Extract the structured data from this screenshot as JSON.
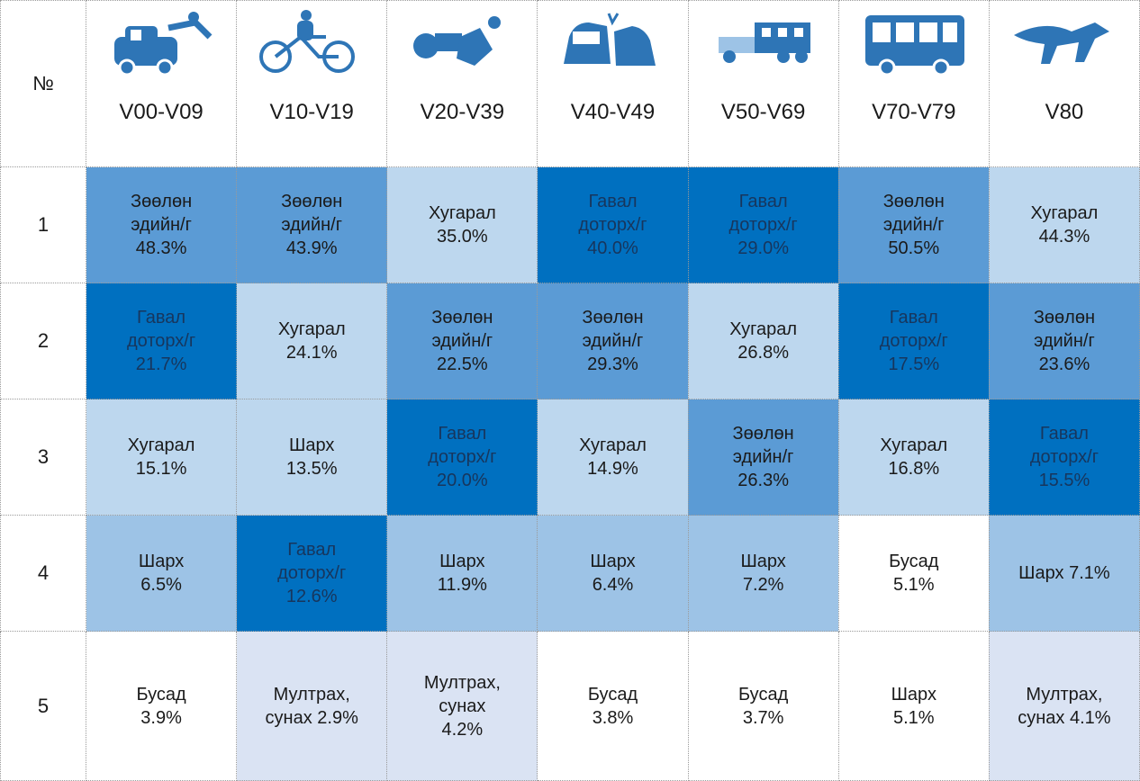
{
  "table": {
    "corner": "№",
    "codes": [
      "V00-V09",
      "V10-V19",
      "V20-V39",
      "V40-V49",
      "V50-V69",
      "V70-V79",
      "V80"
    ],
    "rows": [
      {
        "number": "1",
        "cells": [
          {
            "lines": [
              "Зөөлөн",
              "эдийн/г",
              "48.3%"
            ],
            "color": "#5b9bd5"
          },
          {
            "lines": [
              "Зөөлөн",
              "эдийн/г",
              "43.9%"
            ],
            "color": "#5b9bd5"
          },
          {
            "lines": [
              "Хугарал",
              "35.0%"
            ],
            "color": "#bdd7ee"
          },
          {
            "lines": [
              "Гавал",
              "доторх/г",
              "40.0%"
            ],
            "color": "#0070c0"
          },
          {
            "lines": [
              "Гавал",
              "доторх/г",
              "29.0%"
            ],
            "color": "#0070c0"
          },
          {
            "lines": [
              "Зөөлөн",
              "эдийн/г",
              "50.5%"
            ],
            "color": "#5b9bd5"
          },
          {
            "lines": [
              "Хугарал",
              "44.3%"
            ],
            "color": "#bdd7ee"
          }
        ]
      },
      {
        "number": "2",
        "cells": [
          {
            "lines": [
              "Гавал",
              "доторх/г",
              "21.7%"
            ],
            "color": "#0070c0"
          },
          {
            "lines": [
              "Хугарал",
              "24.1%"
            ],
            "color": "#bdd7ee"
          },
          {
            "lines": [
              "Зөөлөн",
              "эдийн/г",
              "22.5%"
            ],
            "color": "#5b9bd5"
          },
          {
            "lines": [
              "Зөөлөн",
              "эдийн/г",
              "29.3%"
            ],
            "color": "#5b9bd5"
          },
          {
            "lines": [
              "Хугарал",
              "26.8%"
            ],
            "color": "#bdd7ee"
          },
          {
            "lines": [
              "Гавал",
              "доторх/г",
              "17.5%"
            ],
            "color": "#0070c0"
          },
          {
            "lines": [
              "Зөөлөн",
              "эдийн/г",
              "23.6%"
            ],
            "color": "#5b9bd5"
          }
        ]
      },
      {
        "number": "3",
        "cells": [
          {
            "lines": [
              "Хугарал",
              "15.1%"
            ],
            "color": "#bdd7ee"
          },
          {
            "lines": [
              "Шарх",
              "13.5%"
            ],
            "color": "#bdd7ee"
          },
          {
            "lines": [
              "Гавал",
              "доторх/г",
              "20.0%"
            ],
            "color": "#0070c0"
          },
          {
            "lines": [
              "Хугарал",
              "14.9%"
            ],
            "color": "#bdd7ee"
          },
          {
            "lines": [
              "Зөөлөн",
              "эдийн/г",
              "26.3%"
            ],
            "color": "#5b9bd5"
          },
          {
            "lines": [
              "Хугарал",
              "16.8%"
            ],
            "color": "#bdd7ee"
          },
          {
            "lines": [
              "Гавал",
              "доторх/г",
              "15.5%"
            ],
            "color": "#0070c0"
          }
        ]
      },
      {
        "number": "4",
        "cells": [
          {
            "lines": [
              "Шарх",
              "6.5%"
            ],
            "color": "#9dc3e6"
          },
          {
            "lines": [
              "Гавал",
              "доторх/г",
              "12.6%"
            ],
            "color": "#0070c0"
          },
          {
            "lines": [
              "Шарх",
              "11.9%"
            ],
            "color": "#9dc3e6"
          },
          {
            "lines": [
              "Шарх",
              "6.4%"
            ],
            "color": "#9dc3e6"
          },
          {
            "lines": [
              "Шарх",
              "7.2%"
            ],
            "color": "#9dc3e6"
          },
          {
            "lines": [
              "Бусад",
              "5.1%"
            ],
            "color": "#ffffff"
          },
          {
            "lines": [
              "Шарх 7.1%"
            ],
            "color": "#9dc3e6"
          }
        ]
      },
      {
        "number": "5",
        "cells": [
          {
            "lines": [
              "Бусад",
              "3.9%"
            ],
            "color": "#ffffff"
          },
          {
            "lines": [
              "Мултрах,",
              "сунах 2.9%"
            ],
            "color": "#dae3f3"
          },
          {
            "lines": [
              "Мултрах,",
              "сунах",
              "4.2%"
            ],
            "color": "#dae3f3"
          },
          {
            "lines": [
              "Бусад",
              "3.8%"
            ],
            "color": "#ffffff"
          },
          {
            "lines": [
              "Бусад",
              "3.7%"
            ],
            "color": "#ffffff"
          },
          {
            "lines": [
              "Шарх",
              "5.1%"
            ],
            "color": "#ffffff"
          },
          {
            "lines": [
              "Мултрах,",
              "сунах 4.1%"
            ],
            "color": "#dae3f3"
          }
        ]
      }
    ]
  }
}
